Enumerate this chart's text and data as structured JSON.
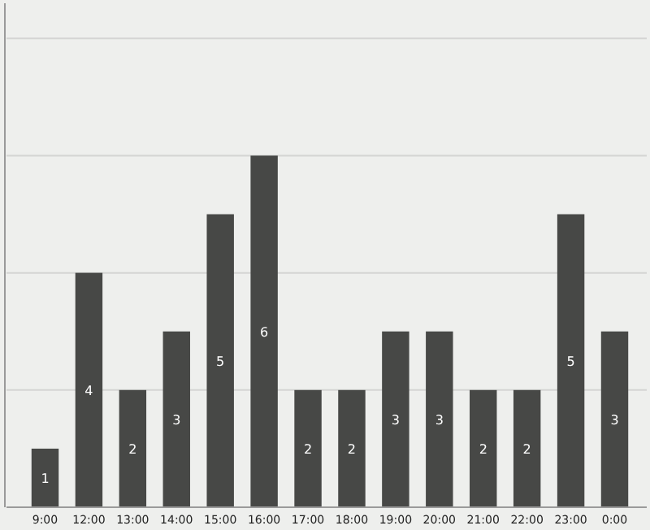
{
  "chart_data": {
    "type": "bar",
    "categories": [
      "9:00",
      "12:00",
      "13:00",
      "14:00",
      "15:00",
      "16:00",
      "17:00",
      "18:00",
      "19:00",
      "20:00",
      "21:00",
      "22:00",
      "23:00",
      "0:00"
    ],
    "values": [
      1,
      4,
      2,
      3,
      5,
      6,
      2,
      2,
      3,
      3,
      2,
      2,
      5,
      3
    ],
    "color": "#474846",
    "data_labels": true,
    "grid": "y",
    "ylim": [
      0,
      8.6
    ],
    "yticks": [
      {
        "value": 0,
        "label": null
      },
      {
        "value": 2,
        "label": null
      },
      {
        "value": 4,
        "label": null
      },
      {
        "value": 6,
        "label": null
      },
      {
        "value": 8,
        "label": null
      }
    ],
    "tick_labels": "x"
  }
}
